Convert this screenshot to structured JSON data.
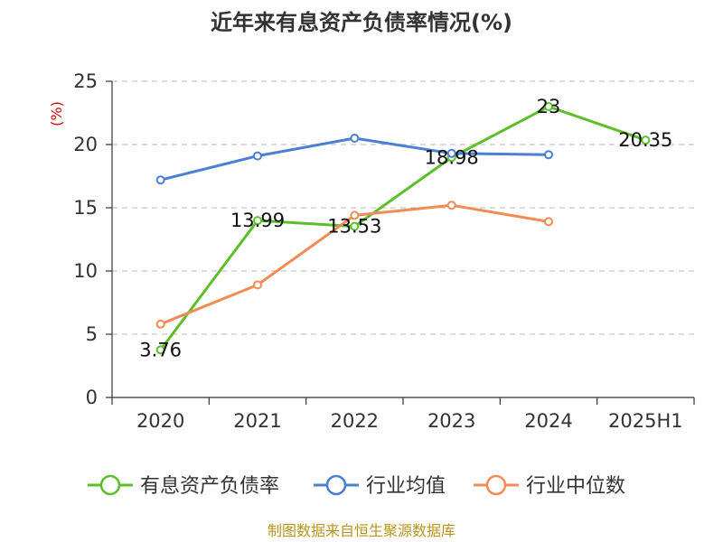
{
  "chart_data": {
    "type": "line",
    "title": "近年来有息资产负债率情况(%)",
    "ylabel": "(%)",
    "ylim": [
      0,
      25
    ],
    "yticks": [
      0,
      5,
      10,
      15,
      20,
      25
    ],
    "categories": [
      "2020",
      "2021",
      "2022",
      "2023",
      "2024",
      "2025H1"
    ],
    "grid": true,
    "legend_position": "bottom",
    "series": [
      {
        "name": "有息资产负债率",
        "color": "#5cbf2a",
        "values": [
          3.76,
          13.99,
          13.53,
          18.98,
          23,
          20.35
        ],
        "labels": [
          "3.76",
          "13.99",
          "13.53",
          "18.98",
          "23",
          "20.35"
        ]
      },
      {
        "name": "行业均值",
        "color": "#4a7fd4",
        "values": [
          17.2,
          19.1,
          20.5,
          19.3,
          19.2,
          null
        ]
      },
      {
        "name": "行业中位数",
        "color": "#f28b54",
        "values": [
          5.8,
          8.9,
          14.4,
          15.2,
          13.9,
          null
        ]
      }
    ],
    "source": "制图数据来自恒生聚源数据库"
  }
}
